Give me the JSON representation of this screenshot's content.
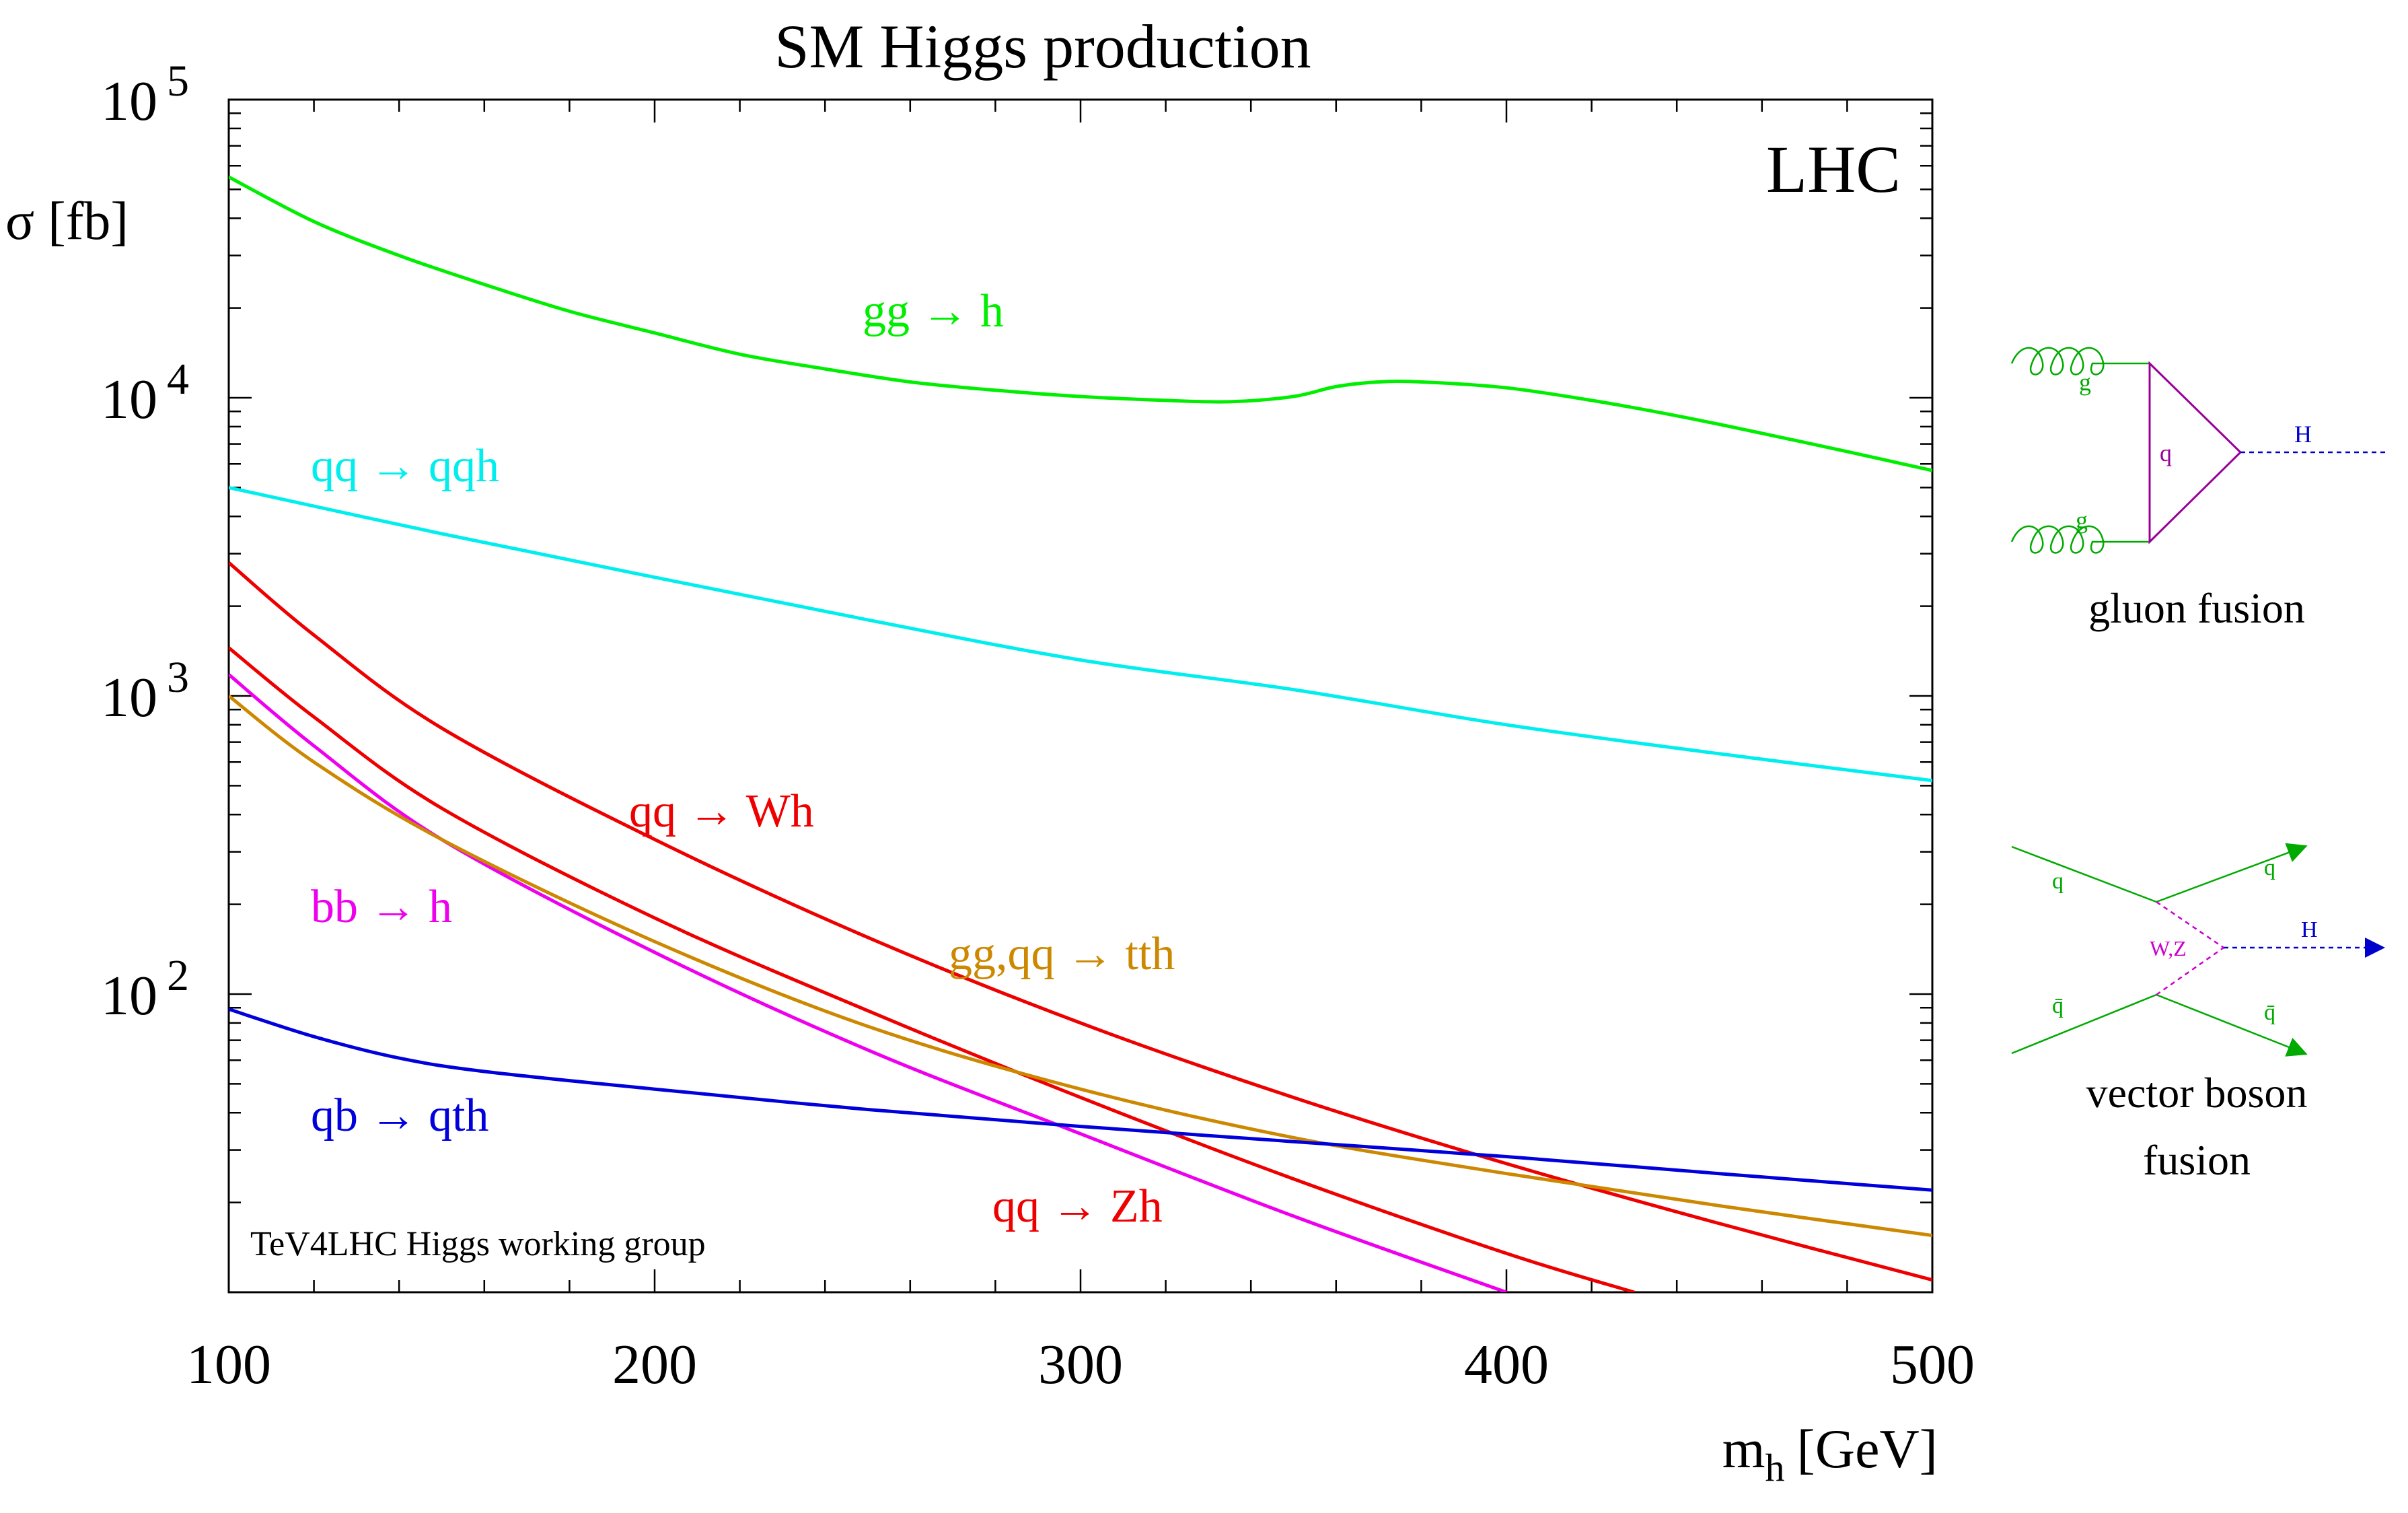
{
  "chart_data": {
    "type": "line",
    "title": "SM Higgs production",
    "experiment_label": "LHC",
    "credit": "TeV4LHC Higgs working group",
    "xlabel": {
      "main": "m",
      "sub": "h",
      "unit": "[GeV]"
    },
    "ylabel": "σ [fb]",
    "x_scale": "linear",
    "y_scale": "log",
    "xlim": [
      100,
      500
    ],
    "ylim": [
      10,
      100000
    ],
    "x_ticks": [
      100,
      200,
      300,
      400,
      500
    ],
    "x_tick_labels": [
      "100",
      "200",
      "300",
      "400",
      "500"
    ],
    "y_decades": [
      {
        "value": 100000,
        "base": "10",
        "exp": "5"
      },
      {
        "value": 10000,
        "base": "10",
        "exp": "4"
      },
      {
        "value": 1000,
        "base": "10",
        "exp": "3"
      },
      {
        "value": 100,
        "base": "10",
        "exp": "2"
      }
    ],
    "series": [
      {
        "name": "gg → h",
        "color": "#00ee00",
        "x": [
          100,
          120,
          140,
          160,
          180,
          200,
          220,
          240,
          260,
          280,
          300,
          320,
          335,
          350,
          360,
          370,
          380,
          400,
          420,
          440,
          460,
          480,
          500
        ],
        "y": [
          55000,
          39000,
          30000,
          24000,
          19500,
          16500,
          14000,
          12500,
          11300,
          10600,
          10100,
          9800,
          9700,
          10100,
          10900,
          11300,
          11300,
          10800,
          9800,
          8700,
          7600,
          6600,
          5700
        ]
      },
      {
        "name": "qq → qqh",
        "color": "#00eeee",
        "x": [
          100,
          150,
          200,
          250,
          300,
          350,
          400,
          450,
          500
        ],
        "y": [
          5000,
          3500,
          2500,
          1800,
          1320,
          1050,
          800,
          640,
          520
        ]
      },
      {
        "name": "qq → Wh",
        "color": "#ee0000",
        "x": [
          100,
          120,
          150,
          200,
          250,
          300,
          350,
          400,
          450,
          500
        ],
        "y": [
          2800,
          1600,
          780,
          330,
          155,
          80,
          45,
          27,
          17,
          11
        ]
      },
      {
        "name": "qq → Zh",
        "color": "#ee0000",
        "x": [
          100,
          120,
          150,
          200,
          250,
          300,
          350,
          400,
          430
        ],
        "y": [
          1450,
          850,
          420,
          180,
          88,
          45,
          24,
          13.5,
          10
        ]
      },
      {
        "name": "bb → h",
        "color": "#ee00ee",
        "x": [
          100,
          120,
          150,
          200,
          250,
          300,
          350,
          400
        ],
        "y": [
          1180,
          680,
          330,
          138,
          65,
          34,
          18,
          10
        ]
      },
      {
        "name": "gg,qq → tth",
        "color": "#cc8800",
        "x": [
          100,
          120,
          150,
          200,
          250,
          300,
          350,
          400,
          450,
          500
        ],
        "y": [
          1000,
          600,
          330,
          150,
          78,
          48,
          33,
          25,
          19.5,
          15.5
        ]
      },
      {
        "name": "qb → qth",
        "color": "#0000dd",
        "x": [
          100,
          120,
          140,
          160,
          200,
          250,
          300,
          350,
          400,
          450,
          500
        ],
        "y": [
          89,
          72,
          61,
          55,
          48,
          41,
          36,
          32,
          28.5,
          25,
          22
        ]
      }
    ],
    "annotations": [
      {
        "series": "gg → h",
        "text": "gg → h"
      },
      {
        "series": "qq → qqh",
        "text": "qq → qqh"
      },
      {
        "series": "qq → Wh",
        "text": "qq → Wh"
      },
      {
        "series": "qq → Zh",
        "text": "qq → Zh"
      },
      {
        "series": "bb → h",
        "text": "bb → h"
      },
      {
        "series": "gg,qq → tth",
        "text": "gg,qq → tth"
      },
      {
        "series": "qb → qth",
        "text": "qb → qth"
      }
    ]
  },
  "diagrams": {
    "gluon_fusion": {
      "caption": "gluon fusion",
      "labels": {
        "gluon_top": "g",
        "gluon_bottom": "g",
        "quark_loop": "q",
        "higgs": "H"
      },
      "colors": {
        "gluon": "#00aa00",
        "loop": "#990099",
        "higgs": "#0000cc"
      }
    },
    "vbf": {
      "caption_line1": "vector boson",
      "caption_line2": "fusion",
      "labels": {
        "q_in": "q",
        "q_out": "q",
        "qbar_in": "q̄",
        "qbar_out": "q̄",
        "boson": "W,Z",
        "higgs": "H"
      },
      "colors": {
        "quark": "#00aa00",
        "boson": "#cc00cc",
        "higgs": "#0000cc"
      }
    }
  }
}
